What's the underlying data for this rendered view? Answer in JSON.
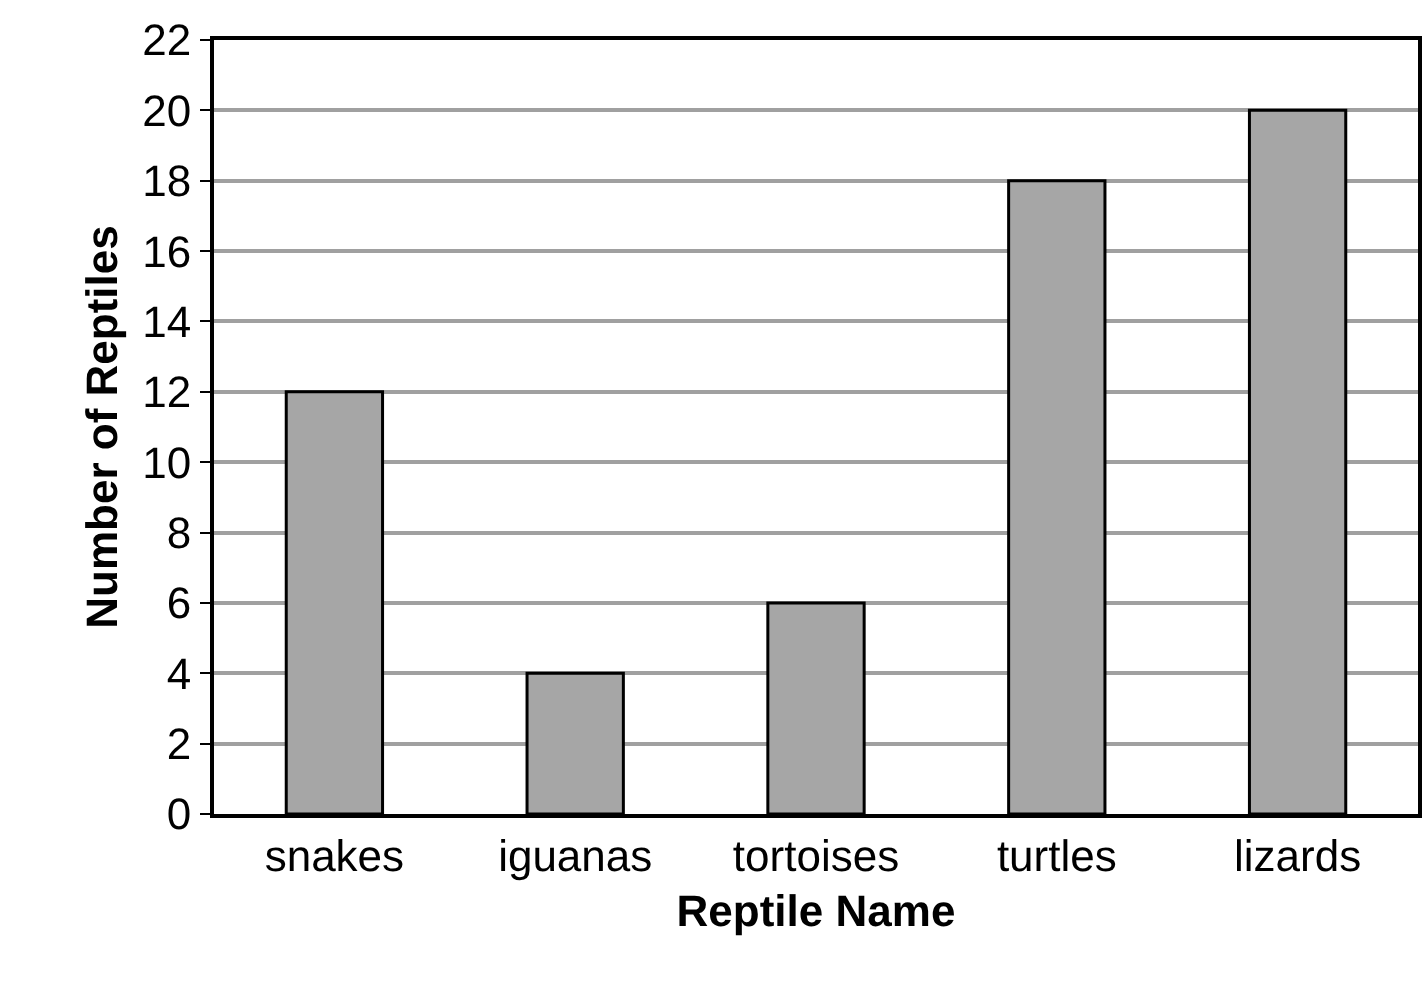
{
  "chart_data": {
    "type": "bar",
    "xlabel": "Reptile Name",
    "ylabel": "Number of Reptiles",
    "categories": [
      "snakes",
      "iguanas",
      "tortoises",
      "turtles",
      "lizards"
    ],
    "values": [
      12,
      4,
      6,
      18,
      20
    ],
    "color": "#a6a6a6",
    "ylim": [
      0,
      22
    ],
    "yticks": [
      0,
      2,
      4,
      6,
      8,
      10,
      12,
      14,
      16,
      18,
      20,
      22
    ],
    "grid": "y"
  }
}
